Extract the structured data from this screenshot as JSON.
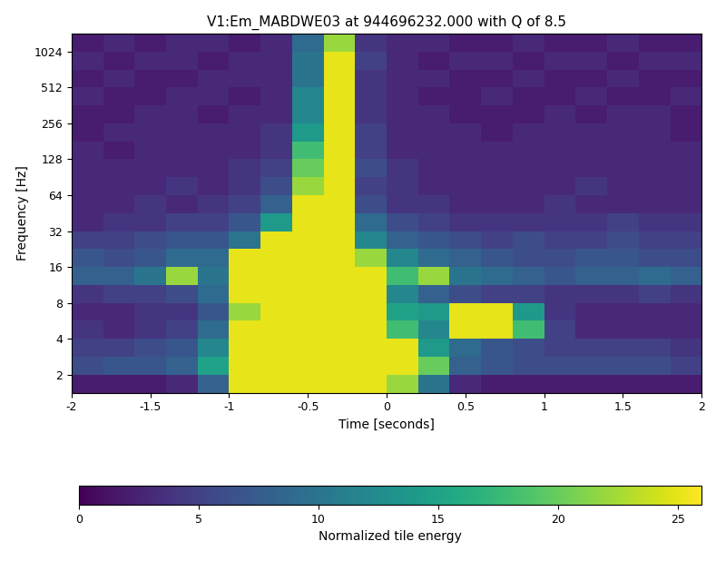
{
  "chart_data": {
    "type": "heatmap",
    "title": "V1:Em_MABDWE03 at 944696232.000 with Q of 8.5",
    "x_label": "Time [seconds]",
    "y_label": "Frequency [Hz]",
    "log": "y",
    "xlim": [
      -2,
      2
    ],
    "xticks": [
      -2,
      -1.5,
      -1,
      -0.5,
      0,
      0.5,
      1,
      1.5,
      2
    ],
    "ylim": [
      1.41,
      1448
    ],
    "yticks": [
      2,
      4,
      8,
      16,
      32,
      64,
      128,
      256,
      512,
      1024
    ],
    "x_bins": [
      -2,
      -1.8,
      -1.6,
      -1.4,
      -1.2,
      -1,
      -0.8,
      -0.6,
      -0.4,
      -0.2,
      0,
      0.2,
      0.4,
      0.6,
      0.8,
      1,
      1.2,
      1.4,
      1.6,
      1.8,
      2
    ],
    "y_bins": [
      1.41,
      2,
      2.83,
      4,
      5.66,
      8,
      11.3,
      16,
      22.6,
      32,
      45.3,
      64,
      90.5,
      128,
      181,
      256,
      362,
      512,
      724,
      1024,
      1448
    ],
    "cells": [
      [
        2,
        2,
        2,
        3,
        8,
        25,
        25,
        25,
        25,
        25,
        22,
        10,
        3,
        2,
        2,
        2,
        2,
        2,
        2,
        2
      ],
      [
        6,
        7,
        7,
        8,
        15,
        25,
        25,
        25,
        25,
        25,
        25,
        20,
        8,
        7,
        6,
        6,
        6,
        6,
        6,
        5
      ],
      [
        5,
        5,
        6,
        7,
        12,
        25,
        25,
        25,
        25,
        25,
        25,
        14,
        9,
        7,
        6,
        5,
        5,
        5,
        5,
        4
      ],
      [
        4,
        3,
        4,
        5,
        9,
        25,
        25,
        25,
        25,
        25,
        18,
        12,
        25,
        25,
        18,
        5,
        3,
        3,
        3,
        3
      ],
      [
        3,
        3,
        4,
        4,
        7,
        22,
        25,
        25,
        25,
        25,
        15,
        14,
        25,
        25,
        14,
        4,
        3,
        3,
        3,
        3
      ],
      [
        4,
        5,
        5,
        6,
        9,
        25,
        25,
        25,
        25,
        25,
        12,
        8,
        6,
        5,
        5,
        4,
        4,
        4,
        5,
        4
      ],
      [
        8,
        8,
        10,
        22,
        10,
        25,
        25,
        25,
        25,
        25,
        18,
        22,
        10,
        9,
        8,
        7,
        8,
        8,
        9,
        8
      ],
      [
        7,
        6,
        7,
        9,
        9,
        25,
        25,
        25,
        25,
        22,
        12,
        9,
        8,
        7,
        6,
        6,
        7,
        7,
        6,
        6
      ],
      [
        5,
        5,
        6,
        7,
        7,
        10,
        25,
        25,
        25,
        12,
        8,
        7,
        6,
        5,
        6,
        5,
        5,
        6,
        5,
        5
      ],
      [
        3,
        4,
        4,
        5,
        5,
        7,
        14,
        25,
        25,
        9,
        6,
        5,
        4,
        4,
        4,
        4,
        4,
        5,
        4,
        4
      ],
      [
        3,
        3,
        4,
        3,
        4,
        5,
        8,
        25,
        25,
        6,
        4,
        4,
        3,
        3,
        3,
        4,
        3,
        3,
        3,
        3
      ],
      [
        3,
        3,
        3,
        4,
        3,
        4,
        6,
        22,
        25,
        5,
        4,
        3,
        3,
        3,
        3,
        3,
        4,
        3,
        3,
        3
      ],
      [
        3,
        3,
        3,
        3,
        3,
        4,
        5,
        20,
        25,
        6,
        4,
        3,
        3,
        3,
        3,
        3,
        3,
        3,
        3,
        3
      ],
      [
        3,
        2,
        3,
        3,
        3,
        3,
        4,
        18,
        25,
        5,
        3,
        3,
        3,
        3,
        3,
        3,
        3,
        3,
        3,
        3
      ],
      [
        2,
        3,
        3,
        3,
        3,
        3,
        4,
        14,
        25,
        5,
        3,
        3,
        3,
        2,
        3,
        3,
        3,
        3,
        3,
        2
      ],
      [
        2,
        2,
        3,
        3,
        2,
        3,
        3,
        12,
        25,
        4,
        3,
        3,
        2,
        2,
        2,
        3,
        2,
        3,
        3,
        2
      ],
      [
        3,
        2,
        2,
        3,
        3,
        2,
        3,
        12,
        25,
        4,
        3,
        2,
        2,
        3,
        2,
        2,
        3,
        2,
        2,
        3
      ],
      [
        2,
        3,
        2,
        2,
        3,
        3,
        3,
        10,
        25,
        4,
        3,
        3,
        2,
        2,
        3,
        2,
        2,
        3,
        2,
        2
      ],
      [
        3,
        2,
        3,
        3,
        2,
        3,
        3,
        10,
        25,
        5,
        3,
        2,
        3,
        3,
        2,
        3,
        3,
        2,
        3,
        3
      ],
      [
        2,
        3,
        2,
        3,
        3,
        2,
        3,
        9,
        22,
        4,
        3,
        3,
        2,
        2,
        3,
        2,
        2,
        3,
        2,
        2
      ]
    ],
    "colorbar": {
      "label": "Normalized tile energy",
      "range": [
        0,
        26
      ],
      "ticks": [
        0,
        5,
        10,
        15,
        20,
        25
      ]
    }
  }
}
